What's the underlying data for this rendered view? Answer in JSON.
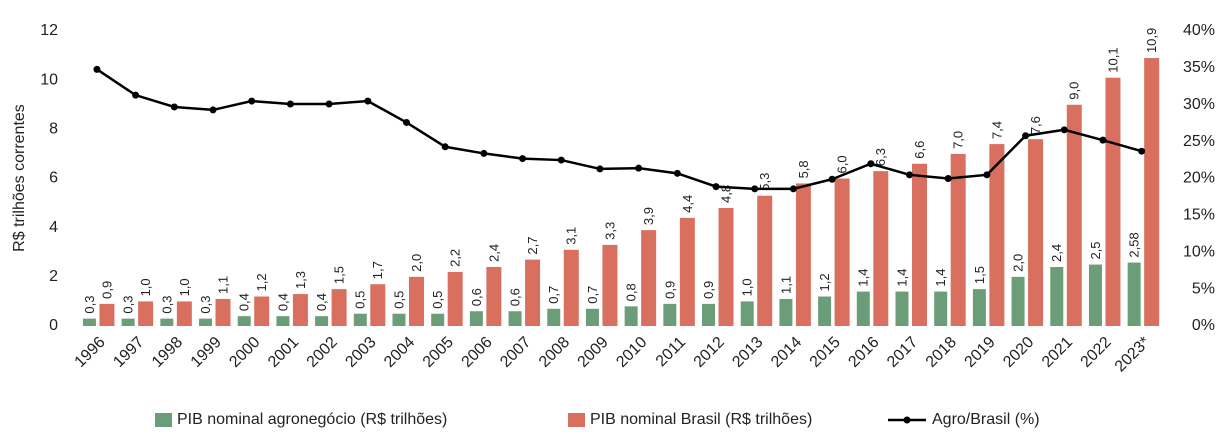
{
  "chart_data": {
    "type": "bar_line",
    "y_label": "R$ trilhões correntes",
    "categories": [
      "1996",
      "1997",
      "1998",
      "1999",
      "2000",
      "2001",
      "2002",
      "2003",
      "2004",
      "2005",
      "2006",
      "2007",
      "2008",
      "2009",
      "2010",
      "2011",
      "2012",
      "2013",
      "2014",
      "2015",
      "2016",
      "2017",
      "2018",
      "2019",
      "2020",
      "2021",
      "2022",
      "2023*"
    ],
    "series": [
      {
        "name": "PIB nominal agronegócio (R$ trilhões)",
        "color": "#6b9e78",
        "type": "bar",
        "values": [
          0.3,
          0.3,
          0.3,
          0.3,
          0.4,
          0.4,
          0.4,
          0.5,
          0.5,
          0.5,
          0.6,
          0.6,
          0.7,
          0.7,
          0.8,
          0.9,
          0.9,
          1.0,
          1.1,
          1.2,
          1.4,
          1.4,
          1.4,
          1.5,
          2.0,
          2.4,
          2.5,
          2.58
        ],
        "value_labels": [
          "0,3",
          "0,3",
          "0,3",
          "0,3",
          "0,4",
          "0,4",
          "0,4",
          "0,5",
          "0,5",
          "0,5",
          "0,6",
          "0,6",
          "0,7",
          "0,7",
          "0,8",
          "0,9",
          "0,9",
          "1,0",
          "1,1",
          "1,2",
          "1,4",
          "1,4",
          "1,4",
          "1,5",
          "2,0",
          "2,4",
          "2,5",
          "2,58"
        ]
      },
      {
        "name": "PIB nominal Brasil  (R$ trilhões)",
        "color": "#d9705f",
        "type": "bar",
        "values": [
          0.9,
          1.0,
          1.0,
          1.1,
          1.2,
          1.3,
          1.5,
          1.7,
          2.0,
          2.2,
          2.4,
          2.7,
          3.1,
          3.3,
          3.9,
          4.4,
          4.8,
          5.3,
          5.8,
          6.0,
          6.3,
          6.6,
          7.0,
          7.4,
          7.6,
          9.0,
          10.1,
          10.9
        ],
        "value_labels": [
          "0,9",
          "1,0",
          "1,0",
          "1,1",
          "1,2",
          "1,3",
          "1,5",
          "1,7",
          "2,0",
          "2,2",
          "2,4",
          "2,7",
          "3,1",
          "3,3",
          "3,9",
          "4,4",
          "4,8",
          "5,3",
          "5,8",
          "6,0",
          "6,3",
          "6,6",
          "7,0",
          "7,4",
          "7,6",
          "9,0",
          "10,1",
          "10,9"
        ]
      },
      {
        "name": "Agro/Brasil (%)",
        "color": "#000000",
        "type": "line",
        "axis": "y2",
        "values": [
          34.8,
          31.3,
          29.7,
          29.3,
          30.5,
          30.1,
          30.1,
          30.5,
          27.6,
          24.3,
          23.4,
          22.7,
          22.5,
          21.3,
          21.4,
          20.7,
          18.9,
          18.6,
          18.6,
          19.9,
          22.0,
          20.5,
          20.0,
          20.5,
          25.8,
          26.6,
          25.2,
          23.7
        ]
      }
    ],
    "ylim": [
      0,
      12
    ],
    "yticks": [
      0,
      2,
      4,
      6,
      8,
      10,
      12
    ],
    "y2lim": [
      0,
      40
    ],
    "y2ticks": [
      {
        "value": 0,
        "label": "0%"
      },
      {
        "value": 5,
        "label": "5%"
      },
      {
        "value": 10,
        "label": "10%"
      },
      {
        "value": 15,
        "label": "15%"
      },
      {
        "value": 20,
        "label": "20%"
      },
      {
        "value": 25,
        "label": "25%"
      },
      {
        "value": 30,
        "label": "30%"
      },
      {
        "value": 35,
        "label": "35%"
      },
      {
        "value": 40,
        "label": "40%"
      }
    ],
    "legend": "bottom"
  }
}
